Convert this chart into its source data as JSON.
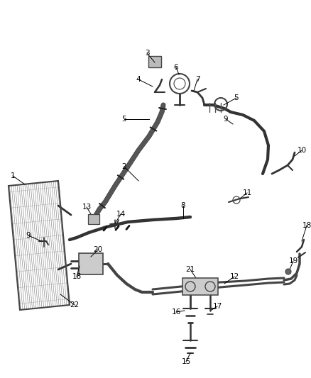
{
  "bg_color": "#ffffff",
  "line_color": "#444444",
  "fig_width": 4.38,
  "fig_height": 5.33,
  "dpi": 100
}
